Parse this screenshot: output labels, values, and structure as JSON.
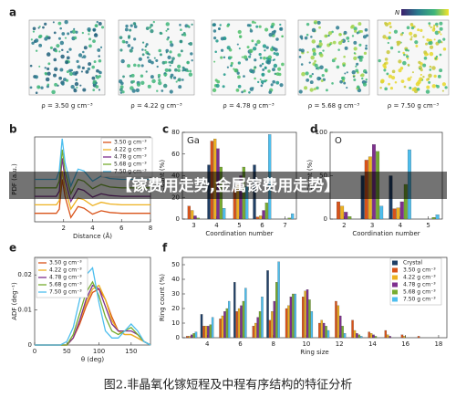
{
  "figure": {
    "panel_labels": [
      "a",
      "b",
      "c",
      "d",
      "e",
      "f"
    ],
    "caption": "图2.非晶氧化镓短程及中程有序结构的特征分析",
    "banner": "【镓费用走势,金属镓费用走势】"
  },
  "panel_a": {
    "labels": [
      "ρ = 3.50 g cm⁻³",
      "ρ = 4.22 g cm⁻³",
      "ρ = 4.78 g cm⁻³",
      "ρ = 5.68 g cm⁻³",
      "ρ = 7.50 g cm⁻³"
    ],
    "colorbar_label": "N"
  },
  "chart_data": [
    {
      "type": "line",
      "x_label": "Distance (Å)",
      "y_label": "PDF (a.u.)",
      "legend": "top-right",
      "x": [
        0,
        1.5,
        1.7,
        1.9,
        2.1,
        2.5,
        3.0,
        3.4,
        4.0,
        4.6,
        5.2,
        6,
        7,
        8
      ],
      "xlim": [
        0,
        8
      ],
      "xticks": [
        2,
        4,
        6,
        8
      ],
      "ylim": [
        0,
        10
      ],
      "series": [
        {
          "name": "3.50 g cm⁻³",
          "color": "#d95319",
          "values": [
            1,
            1,
            1.5,
            5,
            3,
            0.5,
            1.8,
            1.6,
            0.9,
            1.3,
            1.1,
            1,
            1,
            1
          ]
        },
        {
          "name": "4.22 g cm⁻³",
          "color": "#edb120",
          "values": [
            2,
            2,
            2.5,
            6,
            4,
            1.5,
            2.8,
            2.6,
            1.9,
            2.3,
            2.1,
            2,
            2,
            2
          ]
        },
        {
          "name": "4.78 g cm⁻³",
          "color": "#7e2f8e",
          "values": [
            3,
            3,
            3.6,
            7.5,
            5,
            2.4,
            3.9,
            3.7,
            2.9,
            3.3,
            3.1,
            3,
            3,
            3
          ]
        },
        {
          "name": "5.68 g cm⁻³",
          "color": "#77ac30",
          "values": [
            4,
            4,
            4.8,
            8.5,
            6,
            3.3,
            5,
            4.8,
            3.9,
            4.4,
            4.1,
            4,
            4,
            4
          ]
        },
        {
          "name": "7.50 g cm⁻³",
          "color": "#4dbeee",
          "values": [
            5,
            5,
            6,
            9.8,
            7,
            4.2,
            6.2,
            6,
            4.8,
            5.4,
            5.1,
            5,
            5,
            5
          ]
        }
      ]
    },
    {
      "type": "bar",
      "annotation": "Ga",
      "x_label": "Coordination number",
      "y_label": "Count (%)",
      "x": [
        3,
        4,
        5,
        6,
        7
      ],
      "xlim": [
        2.5,
        7.5
      ],
      "xticks": [
        3,
        4,
        5,
        6,
        7
      ],
      "ylim": [
        0,
        80
      ],
      "yticks": [
        0,
        20,
        40,
        60,
        80
      ],
      "series": [
        {
          "color": "#1f3f66",
          "values": [
            0,
            50,
            0,
            50,
            0
          ]
        },
        {
          "color": "#d95319",
          "values": [
            12,
            72,
            28,
            2,
            0
          ]
        },
        {
          "color": "#edb120",
          "values": [
            8,
            74,
            32,
            3,
            0
          ]
        },
        {
          "color": "#7e2f8e",
          "values": [
            3,
            65,
            40,
            8,
            0
          ]
        },
        {
          "color": "#77ac30",
          "values": [
            1,
            48,
            48,
            15,
            1
          ]
        },
        {
          "color": "#4dbeee",
          "values": [
            0,
            10,
            30,
            78,
            5
          ]
        }
      ]
    },
    {
      "type": "bar",
      "annotation": "O",
      "x_label": "Coordination number",
      "y_label": "Count (%)",
      "x": [
        2,
        3,
        4,
        5
      ],
      "xlim": [
        1.5,
        5.5
      ],
      "xticks": [
        2,
        3,
        4,
        5
      ],
      "ylim": [
        0,
        100
      ],
      "yticks": [
        0,
        50,
        100
      ],
      "series": [
        {
          "color": "#1f3f66",
          "values": [
            0,
            50,
            50,
            0
          ]
        },
        {
          "color": "#d95319",
          "values": [
            20,
            68,
            12,
            0
          ]
        },
        {
          "color": "#edb120",
          "values": [
            15,
            72,
            13,
            0
          ]
        },
        {
          "color": "#7e2f8e",
          "values": [
            8,
            86,
            20,
            0
          ]
        },
        {
          "color": "#77ac30",
          "values": [
            3,
            78,
            40,
            2
          ]
        },
        {
          "color": "#4dbeee",
          "values": [
            0,
            15,
            80,
            5
          ]
        }
      ]
    },
    {
      "type": "line",
      "x_label": "θ (deg)",
      "y_label": "ADF (deg⁻¹)",
      "legend": "top-left",
      "x": [
        0,
        40,
        50,
        60,
        70,
        80,
        90,
        100,
        110,
        120,
        130,
        140,
        150,
        160,
        170,
        180
      ],
      "xlim": [
        0,
        180
      ],
      "xticks": [
        0,
        50,
        100,
        150
      ],
      "ylim": [
        0,
        0.025
      ],
      "yticks": [
        0,
        0.01,
        0.02
      ],
      "series": [
        {
          "name": "3.50 g cm⁻³",
          "color": "#d95319",
          "values": [
            0,
            0,
            0,
            0.002,
            0.006,
            0.011,
            0.015,
            0.016,
            0.013,
            0.008,
            0.004,
            0.003,
            0.003,
            0.002,
            0.001,
            0
          ]
        },
        {
          "name": "4.22 g cm⁻³",
          "color": "#edb120",
          "values": [
            0,
            0,
            0,
            0.002,
            0.007,
            0.012,
            0.016,
            0.017,
            0.013,
            0.007,
            0.004,
            0.003,
            0.003,
            0.002,
            0.001,
            0
          ]
        },
        {
          "name": "4.78 g cm⁻³",
          "color": "#7e2f8e",
          "values": [
            0,
            0,
            0,
            0.002,
            0.007,
            0.013,
            0.017,
            0.016,
            0.011,
            0.006,
            0.004,
            0.004,
            0.004,
            0.003,
            0.001,
            0
          ]
        },
        {
          "name": "5.68 g cm⁻³",
          "color": "#77ac30",
          "values": [
            0,
            0,
            0,
            0.003,
            0.009,
            0.015,
            0.018,
            0.014,
            0.008,
            0.004,
            0.003,
            0.004,
            0.005,
            0.003,
            0.001,
            0
          ]
        },
        {
          "name": "7.50 g cm⁻³",
          "color": "#4dbeee",
          "values": [
            0,
            0,
            0.001,
            0.005,
            0.013,
            0.02,
            0.022,
            0.012,
            0.004,
            0.002,
            0.002,
            0.004,
            0.006,
            0.004,
            0.001,
            0
          ]
        }
      ]
    },
    {
      "type": "bar",
      "x_label": "Ring size",
      "y_label": "Ring count (%)",
      "legend": "right",
      "x": [
        3,
        4,
        5,
        6,
        7,
        8,
        9,
        10,
        11,
        12,
        13,
        14,
        15,
        16,
        17
      ],
      "xlim": [
        2.5,
        18.5
      ],
      "xticks": [
        4,
        6,
        8,
        10,
        12,
        14,
        16,
        18
      ],
      "ylim": [
        0,
        55
      ],
      "yticks": [
        0,
        10,
        20,
        30,
        40,
        50
      ],
      "series": [
        {
          "name": "Crystal",
          "color": "#1f3f66",
          "values": [
            0,
            16,
            0,
            38,
            0,
            46,
            0,
            0,
            0,
            0,
            0,
            0,
            0,
            0,
            0
          ]
        },
        {
          "name": "3.50 g cm⁻³",
          "color": "#d95319",
          "values": [
            1,
            8,
            13,
            18,
            8,
            12,
            20,
            28,
            10,
            25,
            12,
            4,
            5,
            2,
            1
          ]
        },
        {
          "name": "4.22 g cm⁻³",
          "color": "#edb120",
          "values": [
            1,
            8,
            15,
            20,
            10,
            18,
            22,
            32,
            12,
            22,
            5,
            3,
            2,
            1,
            0
          ]
        },
        {
          "name": "4.78 g cm⁻³",
          "color": "#7e2f8e",
          "values": [
            2,
            8,
            18,
            22,
            14,
            25,
            28,
            33,
            10,
            15,
            3,
            2,
            1,
            0,
            0
          ]
        },
        {
          "name": "5.68 g cm⁻³",
          "color": "#77ac30",
          "values": [
            3,
            9,
            20,
            25,
            18,
            38,
            30,
            26,
            8,
            8,
            2,
            1,
            0,
            0,
            0
          ]
        },
        {
          "name": "7.50 g cm⁻³",
          "color": "#4dbeee",
          "values": [
            4,
            14,
            25,
            34,
            28,
            52,
            30,
            18,
            5,
            3,
            1,
            0,
            0,
            0,
            0
          ]
        }
      ]
    }
  ]
}
